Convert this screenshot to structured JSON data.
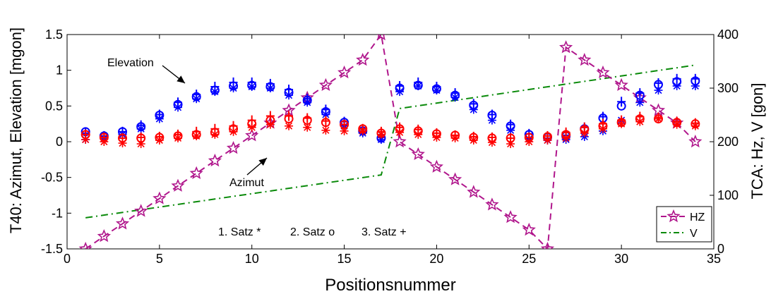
{
  "chart_data": {
    "type": "scatter",
    "xlabel": "Positionsnummer",
    "ylabel_left": "T40: Azimut, Elevation  [mgon]",
    "ylabel_right": "TCA: Hz, V  [gon]",
    "xlim": [
      0,
      35
    ],
    "ylim_left": [
      -1.5,
      1.5
    ],
    "ylim_right": [
      0,
      400
    ],
    "x_ticks": [
      0,
      5,
      10,
      15,
      20,
      25,
      30,
      35
    ],
    "y_ticks_left": [
      -1.5,
      -1,
      -0.5,
      0,
      0.5,
      1,
      1.5
    ],
    "y_ticks_left_labels": [
      "-1.5",
      "-1",
      "-0.5",
      "0",
      "0.5",
      "1",
      "1.5"
    ],
    "y_ticks_right": [
      0,
      100,
      200,
      300,
      400
    ],
    "grid": false,
    "legend_position": "bottom-right",
    "legend": [
      {
        "label": "HZ",
        "color": "#b0168c",
        "style": "dashed-star"
      },
      {
        "label": "V",
        "color": "#0a8a0a",
        "style": "dash-dot"
      }
    ],
    "satz_text": [
      "1. Satz *",
      "2. Satz o",
      "3. Satz +"
    ],
    "annotations": {
      "elevation": "Elevation",
      "azimut": "Azimut"
    },
    "colors": {
      "elevation": "#0000ff",
      "azimut": "#ff0000",
      "hz": "#b0168c",
      "v": "#0a8a0a"
    },
    "x": [
      1,
      2,
      3,
      4,
      5,
      6,
      7,
      8,
      9,
      10,
      11,
      12,
      13,
      14,
      15,
      16,
      17,
      18,
      19,
      20,
      21,
      22,
      23,
      24,
      25,
      26,
      27,
      28,
      29,
      30,
      31,
      32,
      33,
      34
    ],
    "series": [
      {
        "name": "Elevation, 1. Satz *",
        "axis": "left",
        "marker": "*",
        "color": "#0000ff",
        "values": [
          0.03,
          0.04,
          0.1,
          0.18,
          0.32,
          0.48,
          0.6,
          0.7,
          0.75,
          0.77,
          0.75,
          0.65,
          0.55,
          0.38,
          0.22,
          0.12,
          0.03,
          0.7,
          0.78,
          0.72,
          0.62,
          0.45,
          0.3,
          0.16,
          0.04,
          0.02,
          0.03,
          0.07,
          0.15,
          0.3,
          0.55,
          0.72,
          0.78,
          0.78
        ]
      },
      {
        "name": "Elevation, 2. Satz o",
        "axis": "left",
        "marker": "o",
        "color": "#0000ff",
        "values": [
          0.14,
          0.08,
          0.14,
          0.21,
          0.37,
          0.52,
          0.63,
          0.72,
          0.78,
          0.79,
          0.77,
          0.69,
          0.58,
          0.42,
          0.27,
          0.15,
          0.05,
          0.75,
          0.79,
          0.74,
          0.65,
          0.51,
          0.37,
          0.22,
          0.1,
          0.06,
          0.08,
          0.18,
          0.33,
          0.5,
          0.65,
          0.8,
          0.84,
          0.85
        ]
      },
      {
        "name": "Elevation, 3. Satz +",
        "axis": "left",
        "marker": "+",
        "color": "#0000ff",
        "values": [
          0.12,
          0.08,
          0.14,
          0.23,
          0.38,
          0.55,
          0.66,
          0.77,
          0.83,
          0.83,
          0.81,
          0.73,
          0.6,
          0.45,
          0.28,
          0.15,
          0.06,
          0.78,
          0.83,
          0.77,
          0.68,
          0.53,
          0.38,
          0.24,
          0.11,
          0.05,
          0.09,
          0.2,
          0.35,
          0.56,
          0.68,
          0.82,
          0.88,
          0.88
        ]
      },
      {
        "name": "Azimut, 1. Satz *",
        "axis": "left",
        "marker": "*",
        "color": "#ff0000",
        "values": [
          0.03,
          0.0,
          -0.02,
          -0.03,
          0.02,
          0.05,
          0.08,
          0.1,
          0.14,
          0.2,
          0.24,
          0.22,
          0.2,
          0.16,
          0.15,
          0.15,
          0.1,
          0.13,
          0.1,
          0.06,
          0.05,
          0.02,
          -0.01,
          -0.03,
          0.0,
          0.02,
          0.05,
          0.12,
          0.18,
          0.25,
          0.28,
          0.32,
          0.24,
          0.22
        ]
      },
      {
        "name": "Azimut, 2. Satz o",
        "axis": "left",
        "marker": "o",
        "color": "#ff0000",
        "values": [
          0.1,
          0.06,
          0.05,
          0.05,
          0.06,
          0.08,
          0.1,
          0.13,
          0.18,
          0.25,
          0.3,
          0.32,
          0.3,
          0.27,
          0.24,
          0.18,
          0.12,
          0.18,
          0.15,
          0.11,
          0.09,
          0.06,
          0.05,
          0.05,
          0.06,
          0.07,
          0.1,
          0.17,
          0.22,
          0.27,
          0.32,
          0.32,
          0.27,
          0.25
        ]
      },
      {
        "name": "Azimut, 3. Satz +",
        "axis": "left",
        "marker": "+",
        "color": "#ff0000",
        "values": [
          0.1,
          0.06,
          0.05,
          0.06,
          0.07,
          0.1,
          0.14,
          0.18,
          0.22,
          0.3,
          0.36,
          0.36,
          0.33,
          0.29,
          0.24,
          0.18,
          0.14,
          0.2,
          0.17,
          0.12,
          0.09,
          0.07,
          0.06,
          0.05,
          0.06,
          0.08,
          0.13,
          0.2,
          0.25,
          0.3,
          0.35,
          0.34,
          0.28,
          0.26
        ]
      },
      {
        "name": "HZ",
        "axis": "right",
        "marker": "pentagram",
        "color": "#b0168c",
        "line": "dashed",
        "x": [
          1,
          2,
          3,
          4,
          5,
          6,
          7,
          8,
          9,
          10,
          11,
          12,
          13,
          14,
          15,
          16,
          17,
          18,
          19,
          20,
          21,
          22,
          23,
          24,
          25,
          26,
          27,
          28,
          29,
          30,
          31,
          32,
          33,
          34
        ],
        "values": [
          0,
          23.5,
          47,
          70.5,
          94,
          117.5,
          141,
          164.5,
          188,
          211.5,
          235,
          258.5,
          282,
          305.5,
          329,
          352.5,
          400,
          200,
          176.5,
          153,
          129.5,
          106,
          82.5,
          59,
          35.5,
          0,
          376,
          352.5,
          329,
          305.5,
          282,
          258.5,
          235,
          200
        ]
      },
      {
        "name": "V",
        "axis": "right",
        "marker": "none",
        "color": "#0a8a0a",
        "line": "dash-dot",
        "x": [
          1,
          17,
          18,
          34
        ],
        "values": [
          58,
          138,
          262,
          343
        ]
      }
    ]
  }
}
